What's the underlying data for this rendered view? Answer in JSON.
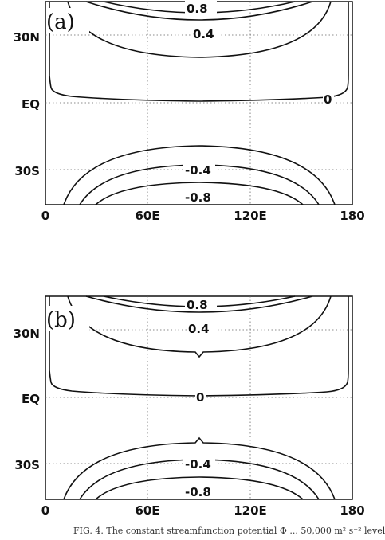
{
  "caption": "FIG. 4. The constant streamfunction potential Φ ... 50,000 m² s⁻² level",
  "chart_data": [
    {
      "type": "contour",
      "panel_label": "(a)",
      "x_ticks": [
        0,
        60,
        120,
        180
      ],
      "x_tick_labels": [
        "0",
        "60E",
        "120E",
        "180"
      ],
      "xlim": [
        0,
        180
      ],
      "y_ticks": [
        30,
        0,
        -30
      ],
      "y_tick_labels": [
        "30N",
        "EQ",
        "30S"
      ],
      "ylim": [
        -45,
        45
      ],
      "grid": true,
      "contour_levels": [
        {
          "value": 0.8,
          "label": "0.8"
        },
        {
          "value": 0.4,
          "label": "0.4"
        },
        {
          "value": 0,
          "label": "0"
        },
        {
          "value": -0.4,
          "label": "-0.4"
        },
        {
          "value": -0.8,
          "label": "-0.8"
        }
      ]
    },
    {
      "type": "contour",
      "panel_label": "(b)",
      "x_ticks": [
        0,
        60,
        120,
        180
      ],
      "x_tick_labels": [
        "0",
        "60E",
        "120E",
        "180"
      ],
      "xlim": [
        0,
        180
      ],
      "y_ticks": [
        30,
        0,
        -30
      ],
      "y_tick_labels": [
        "30N",
        "EQ",
        "30S"
      ],
      "ylim": [
        -45,
        45
      ],
      "grid": true,
      "contour_levels": [
        {
          "value": 0.8,
          "label": "0.8"
        },
        {
          "value": 0.4,
          "label": "0.4"
        },
        {
          "value": 0,
          "label": "0"
        },
        {
          "value": -0.4,
          "label": "-0.4"
        },
        {
          "value": -0.8,
          "label": "-0.8"
        }
      ]
    }
  ]
}
